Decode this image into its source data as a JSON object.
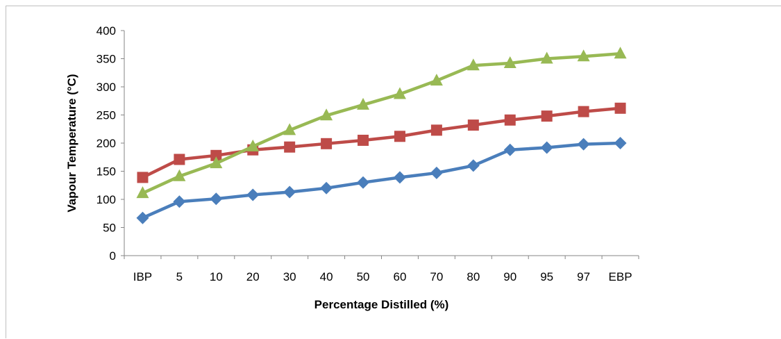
{
  "chart_data": {
    "type": "line",
    "title": "",
    "xlabel": "Percentage Distilled (%)",
    "ylabel": "Vapour Temperature (°C)",
    "categories": [
      "IBP",
      "5",
      "10",
      "20",
      "30",
      "40",
      "50",
      "60",
      "70",
      "80",
      "90",
      "95",
      "97",
      "EBP"
    ],
    "ylim": [
      0,
      400
    ],
    "yticks": [
      0,
      50,
      100,
      150,
      200,
      250,
      300,
      350,
      400
    ],
    "grid": false,
    "legend": "none",
    "series": [
      {
        "color": "#4a7ebb",
        "marker": "diamond",
        "values": [
          67,
          96,
          101,
          108,
          113,
          120,
          130,
          139,
          147,
          160,
          188,
          192,
          198,
          200
        ]
      },
      {
        "color": "#be4b48",
        "marker": "square",
        "values": [
          139,
          171,
          178,
          188,
          193,
          199,
          205,
          212,
          223,
          232,
          241,
          248,
          256,
          262
        ]
      },
      {
        "color": "#98b954",
        "marker": "triangle",
        "values": [
          111,
          141,
          164,
          194,
          223,
          249,
          268,
          287,
          311,
          338,
          342,
          350,
          354,
          359
        ]
      }
    ]
  }
}
